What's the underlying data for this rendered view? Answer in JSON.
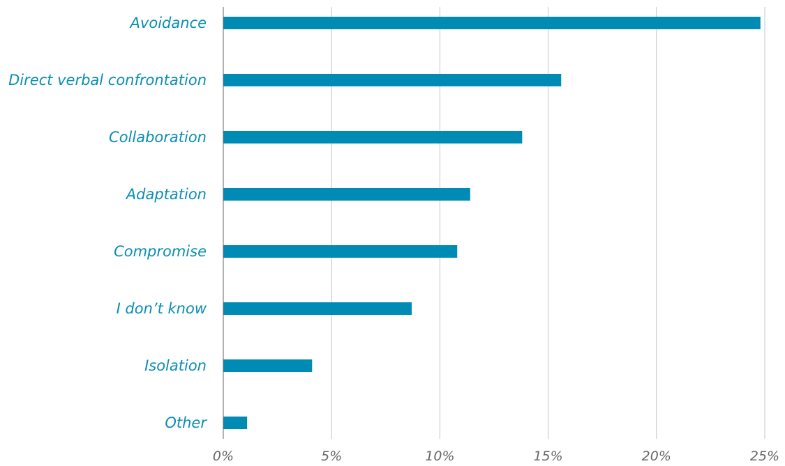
{
  "chart_data": {
    "type": "bar",
    "orientation": "horizontal",
    "categories": [
      "Avoidance",
      "Direct verbal confrontation",
      "Collaboration",
      "Adaptation",
      "Compromise",
      "I don’t know",
      "Isolation",
      "Other"
    ],
    "values": [
      24.8,
      15.6,
      13.8,
      11.4,
      10.8,
      8.7,
      4.1,
      1.1
    ],
    "x_ticks": [
      "0%",
      "5%",
      "10%",
      "15%",
      "20%",
      "25%"
    ],
    "xlim": [
      0,
      25
    ],
    "grid": true,
    "legend": "none"
  },
  "colors": {
    "bar": "#008bb5",
    "label": "#0a8db5",
    "tick": "#666666",
    "grid": "#c4c4c4",
    "axis": "#666666"
  }
}
